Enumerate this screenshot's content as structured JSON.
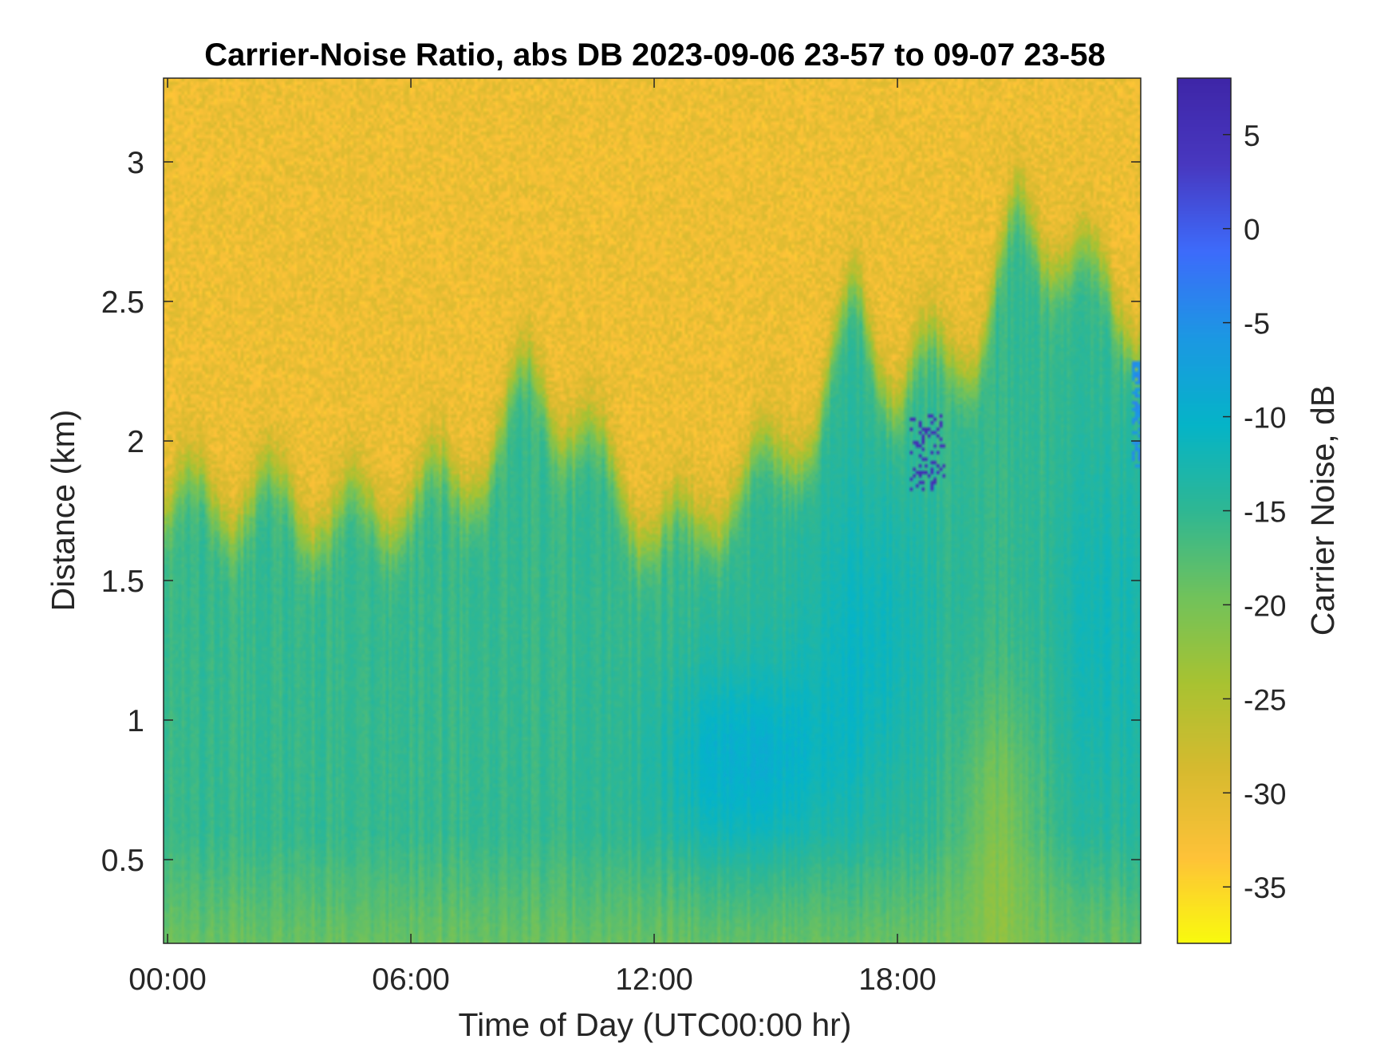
{
  "chart_data": {
    "type": "heatmap",
    "title": "Carrier-Noise Ratio, abs DB 2023-09-06 23-57 to 09-07 23-58",
    "xlabel": "Time of Day (UTC00:00 hr)",
    "ylabel": "Distance (km)",
    "colorbar_label": "Carrier Noise, dB",
    "x_unit": "hours",
    "xlim": [
      -0.1,
      24.0
    ],
    "ylim": [
      0.2,
      3.3
    ],
    "clim": [
      -38,
      8
    ],
    "x_ticks": [
      0,
      6,
      12,
      18
    ],
    "x_tick_labels": [
      "00:00",
      "06:00",
      "12:00",
      "18:00"
    ],
    "y_ticks": [
      0.5,
      1,
      1.5,
      2,
      2.5,
      3
    ],
    "y_tick_labels": [
      "0.5",
      "1",
      "1.5",
      "2",
      "2.5",
      "3"
    ],
    "c_ticks": [
      5,
      0,
      -5,
      -10,
      -15,
      -20,
      -25,
      -30,
      -35
    ],
    "c_tick_labels": [
      "5",
      "0",
      "-5",
      "-10",
      "-15",
      "-20",
      "-25",
      "-30",
      "-35"
    ],
    "colormap": [
      "#f9fb0e",
      "#fec238",
      "#d7ba2f",
      "#a9c231",
      "#71c25b",
      "#2fb793",
      "#05b4c8",
      "#1c98e3",
      "#3d6bfb",
      "#4838c0",
      "#3e26a8"
    ],
    "boundary_layer_top_km": [
      [
        0,
        1.75
      ],
      [
        1,
        1.82
      ],
      [
        2,
        1.78
      ],
      [
        3,
        1.8
      ],
      [
        4,
        1.72
      ],
      [
        5,
        1.75
      ],
      [
        6,
        1.8
      ],
      [
        7,
        1.85
      ],
      [
        8,
        1.95
      ],
      [
        9,
        2.25
      ],
      [
        10,
        2.05
      ],
      [
        11,
        1.85
      ],
      [
        12,
        1.7
      ],
      [
        13,
        1.65
      ],
      [
        14,
        1.85
      ],
      [
        15,
        1.9
      ],
      [
        16,
        2.1
      ],
      [
        17,
        2.5
      ],
      [
        18,
        2.2
      ],
      [
        19,
        2.3
      ],
      [
        20,
        2.35
      ],
      [
        21,
        2.8
      ],
      [
        22,
        2.7
      ],
      [
        23,
        2.55
      ],
      [
        24,
        2.4
      ]
    ]
  }
}
